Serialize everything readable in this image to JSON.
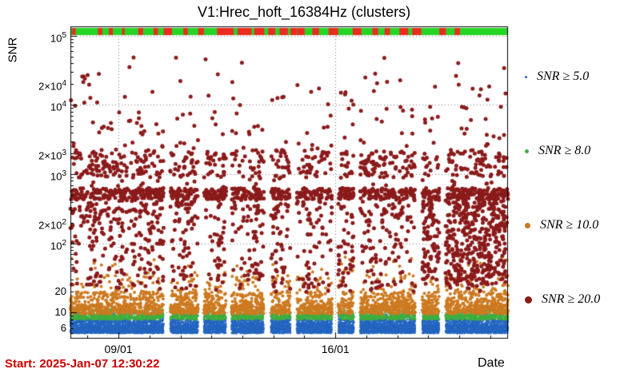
{
  "start_label": "Start: 2025-Jan-07 12:30:22",
  "chart_data": {
    "type": "scatter",
    "title": "V1:Hrec_hoft_16384Hz (clusters)",
    "xlabel": "Date",
    "ylabel": "SNR",
    "y_scale": "log",
    "ylim": [
      4.2,
      137000
    ],
    "xlim_days": [
      7.45,
      21.57
    ],
    "x_ticks": [
      {
        "day": 9,
        "label": "09/01"
      },
      {
        "day": 16,
        "label": "16/01"
      }
    ],
    "y_ticks": [
      {
        "value": 100000,
        "base": "10",
        "sup": "5"
      },
      {
        "value": 20000,
        "base": "2×10",
        "sup": "4"
      },
      {
        "value": 10000,
        "base": "10",
        "sup": "4"
      },
      {
        "value": 2000,
        "base": "2×10",
        "sup": "3"
      },
      {
        "value": 1000,
        "base": "10",
        "sup": "3"
      },
      {
        "value": 200,
        "base": "2×10",
        "sup": "2"
      },
      {
        "value": 100,
        "base": "10",
        "sup": "2"
      },
      {
        "value": 20,
        "base": "20"
      },
      {
        "value": 10,
        "base": "10"
      },
      {
        "value": 6,
        "base": "6"
      }
    ],
    "grid_values": [
      10,
      100,
      1000,
      10000,
      100000
    ],
    "grid_color": "#777777",
    "axis_color": "#000000",
    "status_bar": {
      "ok_color": "#26d426",
      "bad_color": "#ea2b20",
      "red_segments": [
        [
          0.004,
          0.012
        ],
        [
          0.063,
          0.073
        ],
        [
          0.088,
          0.097
        ],
        [
          0.118,
          0.124
        ],
        [
          0.155,
          0.166
        ],
        [
          0.19,
          0.2
        ],
        [
          0.213,
          0.232
        ],
        [
          0.258,
          0.268
        ],
        [
          0.292,
          0.305
        ],
        [
          0.335,
          0.373
        ],
        [
          0.382,
          0.414
        ],
        [
          0.42,
          0.443
        ],
        [
          0.452,
          0.468
        ],
        [
          0.478,
          0.497
        ],
        [
          0.503,
          0.517
        ],
        [
          0.518,
          0.535
        ],
        [
          0.553,
          0.568
        ],
        [
          0.59,
          0.612
        ],
        [
          0.645,
          0.665
        ],
        [
          0.69,
          0.703
        ],
        [
          0.718,
          0.73
        ],
        [
          0.752,
          0.772
        ],
        [
          0.781,
          0.802
        ],
        [
          0.843,
          0.858
        ],
        [
          0.878,
          0.89
        ]
      ]
    },
    "data_gaps": [
      [
        0.213,
        0.228
      ],
      [
        0.292,
        0.305
      ],
      [
        0.356,
        0.368
      ],
      [
        0.442,
        0.458
      ],
      [
        0.503,
        0.517
      ],
      [
        0.598,
        0.612
      ],
      [
        0.648,
        0.662
      ],
      [
        0.788,
        0.804
      ],
      [
        0.843,
        0.857
      ]
    ],
    "series": [
      {
        "name": "SNR ≥ 5.0",
        "color": "#2465c0",
        "marker_px": 2,
        "count": 11000,
        "snr_log_bands": [
          {
            "w": 0.68,
            "lo": 0.7,
            "hi": 0.82
          },
          {
            "w": 0.26,
            "lo": 0.82,
            "hi": 0.9
          },
          {
            "w": 0.06,
            "lo": 0.9,
            "hi": 1.0
          }
        ]
      },
      {
        "name": "SNR ≥ 8.0",
        "color": "#3fae3f",
        "marker_px": 3,
        "count": 2300,
        "snr_log_bands": [
          {
            "w": 0.8,
            "lo": 0.9,
            "hi": 0.97
          },
          {
            "w": 0.2,
            "lo": 0.97,
            "hi": 1.05
          }
        ]
      },
      {
        "name": "SNR ≥ 10.0",
        "color": "#cd7a20",
        "marker_px": 4,
        "count": 2600,
        "snr_log_bands": [
          {
            "w": 0.58,
            "lo": 0.98,
            "hi": 1.12
          },
          {
            "w": 0.3,
            "lo": 1.12,
            "hi": 1.3
          },
          {
            "w": 0.1,
            "lo": 1.3,
            "hi": 1.55
          },
          {
            "w": 0.02,
            "lo": 1.55,
            "hi": 1.8
          }
        ]
      },
      {
        "name": "SNR ≥ 20.0",
        "color": "#8b1b1b",
        "marker_px": 5,
        "count": 2200,
        "snr_log_bands": [
          {
            "w": 0.4,
            "lo": 2.64,
            "hi": 2.8
          },
          {
            "w": 0.22,
            "lo": 2.95,
            "hi": 3.35
          },
          {
            "w": 0.18,
            "lo": 1.3,
            "hi": 2.3
          },
          {
            "w": 0.12,
            "lo": 2.3,
            "hi": 2.64
          },
          {
            "w": 0.06,
            "lo": 3.35,
            "hi": 4.15
          },
          {
            "w": 0.02,
            "lo": 4.15,
            "hi": 4.75
          }
        ],
        "x_clusters": {
          "centers": [
            0.05,
            0.115,
            0.15,
            0.175,
            0.21,
            0.27,
            0.35,
            0.42,
            0.475,
            0.545,
            0.61,
            0.655,
            0.685,
            0.73,
            0.8,
            0.88,
            0.95
          ],
          "sigma": 0.007,
          "points_each": 22,
          "log_lo": 1.35,
          "log_hi": 3.3
        },
        "extra_blob": {
          "x_lo": 0.8,
          "x_hi": 0.995,
          "count": 380,
          "log_lo": 1.4,
          "log_hi": 2.65
        }
      }
    ],
    "legend": [
      {
        "label": "SNR ≥ 5.0",
        "color": "#2465c0",
        "marker_px": 3
      },
      {
        "label": "SNR ≥ 8.0",
        "color": "#3fae3f",
        "marker_px": 5
      },
      {
        "label": "SNR ≥ 10.0",
        "color": "#cd7a20",
        "marker_px": 7
      },
      {
        "label": "SNR ≥ 20.0",
        "color": "#8b1b1b",
        "marker_px": 9
      }
    ],
    "legend_position": "right"
  }
}
